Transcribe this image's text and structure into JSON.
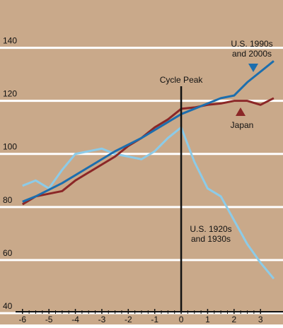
{
  "chart_data": {
    "type": "line",
    "annotation": "Cycle Peak",
    "cycle_peak_x": 0,
    "xlim": [
      -6.85,
      3.85
    ],
    "xticks": [
      -6,
      -5,
      -4,
      -3,
      -2,
      -1,
      0,
      1,
      2,
      3
    ],
    "ylim": [
      40,
      158
    ],
    "yticks": [
      40,
      60,
      80,
      100,
      120,
      140
    ],
    "grid": true,
    "background": "#c9a98a",
    "x": [
      -6,
      -5.5,
      -5,
      -4.5,
      -4,
      -3.5,
      -3,
      -2.5,
      -2,
      -1.5,
      -1,
      -0.5,
      0,
      0.5,
      1,
      1.5,
      2,
      2.5,
      3,
      3.5
    ],
    "series": [
      {
        "name": [
          "U.S. 1990s",
          "and 2000s"
        ],
        "color": "#1c6eae",
        "marker": "down",
        "values": [
          82,
          84,
          86.5,
          89,
          92,
          95,
          98,
          101,
          103.5,
          106,
          109,
          112,
          115,
          117,
          119,
          121,
          122,
          127,
          131,
          135
        ]
      },
      {
        "name": [
          "Japan"
        ],
        "color": "#8b2727",
        "marker": "up",
        "values": [
          81,
          84,
          85,
          86,
          90,
          93,
          96,
          99,
          103,
          106,
          110,
          113,
          117,
          117.5,
          118.5,
          119,
          120,
          120,
          118.5,
          121
        ]
      },
      {
        "name": [
          "U.S. 1920s",
          "and 1930s"
        ],
        "color": "#8ccbe8",
        "marker": "none",
        "values": [
          88,
          90,
          87,
          94,
          100,
          101,
          102,
          100,
          99,
          98,
          101,
          106,
          110,
          97,
          87,
          84,
          75,
          66,
          59,
          53
        ]
      }
    ]
  }
}
